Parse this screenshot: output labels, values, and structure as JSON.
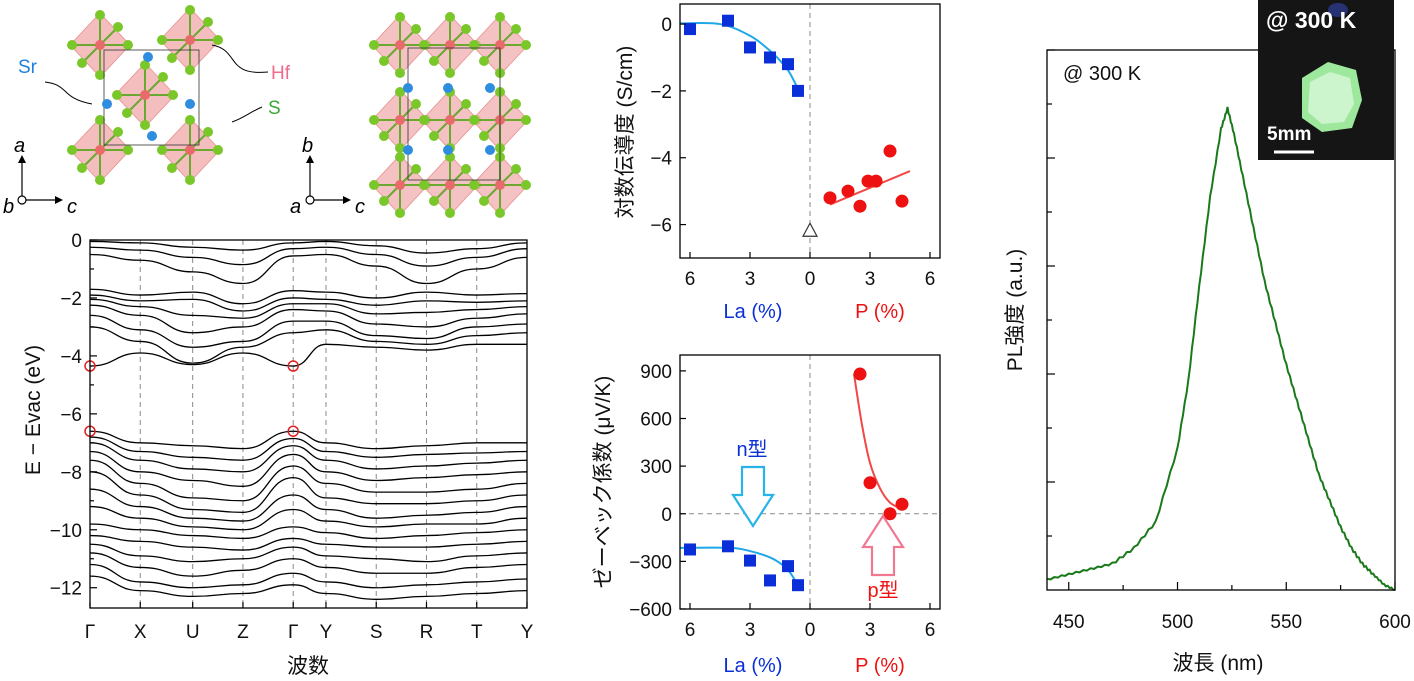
{
  "structures": {
    "left_labels": {
      "sr": "Sr",
      "hf": "Hf",
      "s": "S"
    },
    "left_axes": {
      "up": "a",
      "origin": "b",
      "right": "c"
    },
    "right_axes": {
      "up": "b",
      "origin": "a",
      "right": "c"
    }
  },
  "colors": {
    "octahedron": "#f0a8a8",
    "hf_atom": "#e86a6a",
    "s_atom": "#7ac72a",
    "sr_atom": "#2f8de0",
    "la_series": "#0a2ed8",
    "la_fit": "#1ea8e8",
    "p_series": "#ee1111",
    "p_fit": "#f04848",
    "n_arrow": "#28b4e8",
    "p_arrow": "#f07890",
    "pl_curve": "#1a7a1a",
    "band_marker": "#e02020",
    "inset_bg": "#111111",
    "inset_glow": "#b8f0b8"
  },
  "chart_data": [
    {
      "type": "line",
      "panel": "band-structure",
      "ylabel": "E − Evac (eV)",
      "xlabel": "波数",
      "xtick_labels": [
        "Γ",
        "X",
        "U",
        "Z",
        "Γ",
        "Y",
        "S",
        "R",
        "T",
        "Y"
      ],
      "yticks": [
        0,
        -2,
        -4,
        -6,
        -8,
        -10,
        -12
      ],
      "ylim": [
        -12.7,
        0
      ],
      "grid": "dashed vertical lines at symmetry points",
      "markers": [
        {
          "at": "Γ (left)",
          "energy": -4.35
        },
        {
          "at": "Γ (left)",
          "energy": -6.6
        },
        {
          "at": "Γ (middle)",
          "energy": -4.35
        },
        {
          "at": "Γ (middle)",
          "energy": -6.6
        }
      ],
      "series": [
        {
          "values": [
            -0.05,
            -0.1,
            -0.25,
            -0.35,
            -0.1,
            -0.05,
            -0.2,
            -0.45,
            -0.3,
            -0.1
          ]
        },
        {
          "values": [
            -0.25,
            -0.35,
            -0.6,
            -0.85,
            -0.3,
            -0.25,
            -0.5,
            -0.9,
            -0.6,
            -0.3
          ]
        },
        {
          "values": [
            -0.5,
            -0.7,
            -1.1,
            -1.5,
            -0.55,
            -0.5,
            -0.9,
            -1.5,
            -1.0,
            -0.6
          ]
        },
        {
          "values": [
            -1.7,
            -1.9,
            -1.8,
            -2.2,
            -1.75,
            -1.8,
            -2.0,
            -1.8,
            -1.9,
            -1.85
          ]
        },
        {
          "values": [
            -1.9,
            -2.1,
            -2.05,
            -2.45,
            -2.0,
            -2.05,
            -2.25,
            -2.1,
            -2.15,
            -2.1
          ]
        },
        {
          "values": [
            -2.05,
            -2.3,
            -2.6,
            -2.7,
            -2.2,
            -2.2,
            -2.55,
            -2.5,
            -2.4,
            -2.3
          ]
        },
        {
          "values": [
            -2.25,
            -2.6,
            -3.2,
            -3.0,
            -2.4,
            -2.45,
            -2.9,
            -3.0,
            -2.7,
            -2.55
          ]
        },
        {
          "values": [
            -2.6,
            -3.1,
            -3.7,
            -3.5,
            -2.8,
            -2.8,
            -3.3,
            -3.4,
            -3.0,
            -2.9
          ]
        },
        {
          "values": [
            -3.0,
            -3.5,
            -4.25,
            -3.7,
            -3.2,
            -3.1,
            -3.5,
            -3.6,
            -3.3,
            -3.2
          ]
        },
        {
          "values": [
            -4.35,
            -3.9,
            -4.3,
            -3.9,
            -4.35,
            -3.6,
            -3.7,
            -3.8,
            -3.6,
            -3.6
          ]
        },
        {
          "values": [
            -6.6,
            -7.0,
            -7.1,
            -7.2,
            -6.6,
            -7.0,
            -7.2,
            -7.1,
            -7.0,
            -7.0
          ]
        },
        {
          "values": [
            -6.8,
            -7.3,
            -7.5,
            -7.6,
            -6.85,
            -7.3,
            -7.5,
            -7.4,
            -7.35,
            -7.3
          ]
        },
        {
          "values": [
            -7.0,
            -7.6,
            -7.9,
            -8.0,
            -7.1,
            -7.6,
            -7.9,
            -7.8,
            -7.7,
            -7.6
          ]
        },
        {
          "values": [
            -7.3,
            -8.0,
            -8.3,
            -8.5,
            -7.4,
            -8.0,
            -8.3,
            -8.2,
            -8.1,
            -8.0
          ]
        },
        {
          "values": [
            -7.6,
            -8.4,
            -8.9,
            -9.0,
            -7.8,
            -8.4,
            -8.7,
            -8.7,
            -8.6,
            -8.4
          ]
        },
        {
          "values": [
            -8.0,
            -8.8,
            -9.3,
            -9.4,
            -8.2,
            -8.9,
            -9.1,
            -9.1,
            -9.0,
            -8.8
          ]
        },
        {
          "values": [
            -8.6,
            -9.2,
            -9.6,
            -9.7,
            -8.8,
            -9.3,
            -9.6,
            -9.5,
            -9.4,
            -9.2
          ]
        },
        {
          "values": [
            -9.2,
            -9.6,
            -9.9,
            -10.0,
            -9.3,
            -9.7,
            -9.9,
            -9.8,
            -9.8,
            -9.6
          ]
        },
        {
          "values": [
            -9.8,
            -10.0,
            -10.2,
            -10.3,
            -9.9,
            -10.1,
            -10.3,
            -10.2,
            -10.1,
            -10.0
          ]
        },
        {
          "values": [
            -10.2,
            -10.4,
            -10.6,
            -10.7,
            -10.3,
            -10.5,
            -10.6,
            -10.6,
            -10.5,
            -10.4
          ]
        },
        {
          "values": [
            -10.5,
            -10.9,
            -11.1,
            -11.0,
            -10.6,
            -10.9,
            -11.0,
            -11.1,
            -10.9,
            -10.8
          ]
        },
        {
          "values": [
            -10.8,
            -11.3,
            -11.6,
            -11.4,
            -11.0,
            -11.3,
            -11.5,
            -11.5,
            -11.3,
            -11.2
          ]
        },
        {
          "values": [
            -11.2,
            -11.8,
            -12.0,
            -11.9,
            -11.5,
            -11.8,
            -12.0,
            -11.9,
            -11.8,
            -11.7
          ]
        },
        {
          "values": [
            -11.6,
            -12.1,
            -12.3,
            -12.2,
            -11.9,
            -12.2,
            -12.4,
            -12.3,
            -12.2,
            -12.1
          ]
        }
      ]
    },
    {
      "type": "scatter",
      "panel": "conductivity",
      "ylabel": "対数伝導度 (S/cm)",
      "x_axis_labels": {
        "left": "La (%)",
        "right": "P (%)"
      },
      "xtick_labels": [
        "6",
        "3",
        "0",
        "3",
        "6"
      ],
      "xlim": [
        -6.5,
        6.5
      ],
      "yticks": [
        0,
        -2,
        -4,
        -6
      ],
      "ylim": [
        -7.0,
        0.6
      ],
      "series": [
        {
          "x": [
            -6.0,
            -4.1,
            -3.0,
            -2.0,
            -1.1,
            -0.6
          ],
          "y": [
            -0.15,
            0.1,
            -0.7,
            -1.0,
            -1.2,
            -2.0
          ]
        },
        {
          "x": [
            1.0,
            1.9,
            2.5,
            2.9,
            3.3,
            4.0,
            4.6
          ],
          "y": [
            -5.2,
            -5.0,
            -5.45,
            -4.7,
            -4.7,
            -3.8,
            -5.3
          ]
        },
        {
          "x": [
            0.0
          ],
          "y": [
            -6.2
          ]
        }
      ],
      "fits": [
        {
          "x": [
            -6.5,
            -4.5,
            -3.0,
            -2.0,
            -1.2,
            -0.8,
            -0.5
          ],
          "y": [
            0.02,
            0.0,
            -0.35,
            -0.8,
            -1.3,
            -1.7,
            -2.1
          ]
        },
        {
          "x": [
            1.0,
            5.0
          ],
          "y": [
            -5.4,
            -4.4
          ]
        }
      ]
    },
    {
      "type": "scatter",
      "panel": "seebeck",
      "ylabel": "ゼーベック係数 (μV/K)",
      "x_axis_labels": {
        "left": "La (%)",
        "right": "P (%)"
      },
      "xtick_labels": [
        "6",
        "3",
        "0",
        "3",
        "6"
      ],
      "xlim": [
        -6.5,
        6.5
      ],
      "yticks": [
        900,
        600,
        300,
        0,
        -300,
        -600
      ],
      "ylim": [
        -600,
        1000
      ],
      "annotations": {
        "n_type": "n型",
        "p_type": "p型"
      },
      "series": [
        {
          "x": [
            -6.0,
            -4.1,
            -3.0,
            -2.0,
            -1.1,
            -0.6
          ],
          "y": [
            -225,
            -205,
            -295,
            -420,
            -330,
            -450
          ]
        },
        {
          "x": [
            2.5,
            3.0,
            4.0,
            4.6
          ],
          "y": [
            880,
            195,
            0,
            60
          ]
        }
      ],
      "fits": [
        {
          "x": [
            -6.5,
            -4.0,
            -3.0,
            -2.0,
            -1.4,
            -1.0,
            -0.5
          ],
          "y": [
            -215,
            -215,
            -235,
            -275,
            -320,
            -370,
            -470
          ]
        },
        {
          "x": [
            2.2,
            2.6,
            3.0,
            3.5,
            4.0,
            4.6
          ],
          "y": [
            880,
            560,
            320,
            160,
            70,
            30
          ]
        }
      ]
    },
    {
      "type": "line",
      "panel": "pl-spectrum",
      "ylabel": "PL強度 (a.u.)",
      "xlabel": "波長 (nm)",
      "xtick_labels": [
        "450",
        "500",
        "550",
        "600"
      ],
      "xlim": [
        440,
        600
      ],
      "ylim": [
        0,
        1.0
      ],
      "annotation": "@ 300 K",
      "inset": {
        "title": "@ 300 K",
        "scale_bar": "5mm"
      },
      "series": [
        {
          "x": [
            440,
            450,
            460,
            470,
            480,
            490,
            500,
            505,
            510,
            515,
            520,
            523,
            526,
            530,
            535,
            540,
            545,
            550,
            555,
            560,
            565,
            570,
            575,
            580,
            585,
            590,
            595,
            600
          ],
          "y": [
            0.02,
            0.03,
            0.04,
            0.05,
            0.08,
            0.13,
            0.27,
            0.4,
            0.58,
            0.75,
            0.88,
            0.92,
            0.87,
            0.79,
            0.69,
            0.59,
            0.51,
            0.43,
            0.36,
            0.29,
            0.22,
            0.17,
            0.12,
            0.08,
            0.05,
            0.03,
            0.01,
            0.0
          ]
        }
      ]
    }
  ]
}
